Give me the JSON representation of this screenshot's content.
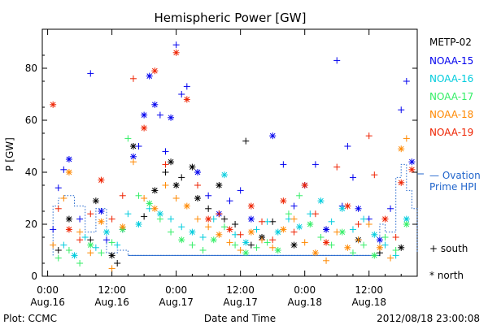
{
  "chart_data": {
    "type": "scatter",
    "title": "Hemispheric Power [GW]",
    "ylabel": "P [GW]",
    "xlabel": "Date and Time",
    "ylim": [
      0,
      95
    ],
    "yticks": [
      0,
      20,
      40,
      60,
      80
    ],
    "xticks": [
      {
        "time": "0:00",
        "date": "Aug.16",
        "hour": 0
      },
      {
        "time": "12:00",
        "date": "Aug.16",
        "hour": 12
      },
      {
        "time": "0:00",
        "date": "Aug.17",
        "hour": 24
      },
      {
        "time": "12:00",
        "date": "Aug.17",
        "hour": 36
      },
      {
        "time": "0:00",
        "date": "Aug.18",
        "hour": 48
      },
      {
        "time": "12:00",
        "date": "Aug.18",
        "hour": 60
      }
    ],
    "xlim_hours": [
      -1,
      69
    ],
    "series": [
      {
        "name": "METP-02",
        "color": "#000000",
        "points": [
          [
            2,
            10,
            "s"
          ],
          [
            4,
            22,
            "n"
          ],
          [
            8,
            14,
            "s"
          ],
          [
            9,
            29,
            "n"
          ],
          [
            12,
            8,
            "n"
          ],
          [
            13,
            5,
            "s"
          ],
          [
            16,
            50,
            "n"
          ],
          [
            18,
            23,
            "s"
          ],
          [
            20,
            33,
            "n"
          ],
          [
            22,
            40,
            "s"
          ],
          [
            23,
            44,
            "n"
          ],
          [
            24,
            35,
            "n"
          ],
          [
            25,
            38,
            "s"
          ],
          [
            27,
            42,
            "n"
          ],
          [
            28,
            30,
            "n"
          ],
          [
            30,
            26,
            "s"
          ],
          [
            32,
            35,
            "n"
          ],
          [
            33,
            22,
            "s"
          ],
          [
            35,
            20,
            "s"
          ],
          [
            37,
            52,
            "s"
          ],
          [
            38,
            12,
            "s"
          ],
          [
            40,
            15,
            "n"
          ],
          [
            42,
            21,
            "s"
          ],
          [
            46,
            12,
            "n"
          ],
          [
            52,
            18,
            "s"
          ],
          [
            58,
            14,
            "n"
          ],
          [
            62,
            9,
            "s"
          ],
          [
            66,
            11,
            "n"
          ]
        ]
      },
      {
        "name": "NOAA-15",
        "color": "#0000ee",
        "points": [
          [
            1,
            18,
            "s"
          ],
          [
            2,
            34,
            "s"
          ],
          [
            3,
            41,
            "s"
          ],
          [
            4,
            45,
            "n"
          ],
          [
            6,
            22,
            "s"
          ],
          [
            8,
            78,
            "s"
          ],
          [
            10,
            25,
            "n"
          ],
          [
            11,
            14,
            "s"
          ],
          [
            14,
            18,
            "s"
          ],
          [
            16,
            46,
            "n"
          ],
          [
            17,
            50,
            "s"
          ],
          [
            18,
            62,
            "n"
          ],
          [
            19,
            77,
            "n"
          ],
          [
            20,
            66,
            "n"
          ],
          [
            21,
            62,
            "s"
          ],
          [
            22,
            48,
            "s"
          ],
          [
            23,
            61,
            "n"
          ],
          [
            24,
            89,
            "s"
          ],
          [
            25,
            70,
            "s"
          ],
          [
            26,
            73,
            "s"
          ],
          [
            28,
            40,
            "n"
          ],
          [
            30,
            31,
            "s"
          ],
          [
            32,
            24,
            "n"
          ],
          [
            34,
            29,
            "s"
          ],
          [
            36,
            33,
            "s"
          ],
          [
            38,
            22,
            "n"
          ],
          [
            40,
            14,
            "s"
          ],
          [
            42,
            54,
            "n"
          ],
          [
            44,
            43,
            "s"
          ],
          [
            46,
            27,
            "s"
          ],
          [
            48,
            35,
            "n"
          ],
          [
            50,
            43,
            "s"
          ],
          [
            52,
            18,
            "n"
          ],
          [
            54,
            83,
            "s"
          ],
          [
            55,
            27,
            "s"
          ],
          [
            56,
            50,
            "s"
          ],
          [
            57,
            38,
            "s"
          ],
          [
            58,
            26,
            "n"
          ],
          [
            60,
            22,
            "s"
          ],
          [
            62,
            14,
            "n"
          ],
          [
            64,
            26,
            "s"
          ],
          [
            66,
            64,
            "s"
          ],
          [
            67,
            75,
            "s"
          ],
          [
            68,
            44,
            "n"
          ]
        ]
      },
      {
        "name": "NOAA-16",
        "color": "#00ccdd",
        "points": [
          [
            3,
            12,
            "s"
          ],
          [
            5,
            8,
            "n"
          ],
          [
            7,
            15,
            "s"
          ],
          [
            9,
            11,
            "s"
          ],
          [
            11,
            17,
            "n"
          ],
          [
            13,
            12,
            "s"
          ],
          [
            15,
            24,
            "s"
          ],
          [
            17,
            20,
            "n"
          ],
          [
            19,
            26,
            "s"
          ],
          [
            21,
            24,
            "n"
          ],
          [
            23,
            22,
            "s"
          ],
          [
            25,
            19,
            "s"
          ],
          [
            27,
            17,
            "n"
          ],
          [
            29,
            15,
            "s"
          ],
          [
            31,
            22,
            "s"
          ],
          [
            33,
            39,
            "n"
          ],
          [
            35,
            16,
            "s"
          ],
          [
            37,
            13,
            "n"
          ],
          [
            39,
            18,
            "s"
          ],
          [
            41,
            21,
            "s"
          ],
          [
            43,
            17,
            "n"
          ],
          [
            45,
            22,
            "s"
          ],
          [
            47,
            19,
            "n"
          ],
          [
            49,
            24,
            "s"
          ],
          [
            51,
            29,
            "n"
          ],
          [
            53,
            21,
            "s"
          ],
          [
            55,
            26,
            "n"
          ],
          [
            57,
            18,
            "s"
          ],
          [
            59,
            22,
            "s"
          ],
          [
            61,
            16,
            "n"
          ],
          [
            63,
            12,
            "s"
          ],
          [
            65,
            8,
            "s"
          ],
          [
            67,
            22,
            "n"
          ]
        ]
      },
      {
        "name": "NOAA-17",
        "color": "#33ee66",
        "points": [
          [
            2,
            7,
            "s"
          ],
          [
            4,
            10,
            "s"
          ],
          [
            6,
            5,
            "s"
          ],
          [
            8,
            12,
            "n"
          ],
          [
            10,
            9,
            "s"
          ],
          [
            12,
            13,
            "s"
          ],
          [
            14,
            18,
            "n"
          ],
          [
            15,
            53,
            "s"
          ],
          [
            17,
            31,
            "s"
          ],
          [
            19,
            28,
            "n"
          ],
          [
            21,
            22,
            "s"
          ],
          [
            23,
            17,
            "s"
          ],
          [
            25,
            14,
            "n"
          ],
          [
            27,
            12,
            "s"
          ],
          [
            29,
            10,
            "s"
          ],
          [
            31,
            14,
            "n"
          ],
          [
            33,
            19,
            "s"
          ],
          [
            35,
            12,
            "s"
          ],
          [
            37,
            9,
            "n"
          ],
          [
            39,
            11,
            "s"
          ],
          [
            41,
            13,
            "s"
          ],
          [
            43,
            10,
            "n"
          ],
          [
            45,
            24,
            "s"
          ],
          [
            47,
            31,
            "s"
          ],
          [
            49,
            20,
            "n"
          ],
          [
            51,
            15,
            "s"
          ],
          [
            53,
            12,
            "s"
          ],
          [
            55,
            17,
            "n"
          ],
          [
            57,
            9,
            "s"
          ],
          [
            59,
            12,
            "s"
          ],
          [
            61,
            8,
            "n"
          ],
          [
            63,
            15,
            "s"
          ],
          [
            65,
            10,
            "s"
          ],
          [
            67,
            20,
            "n"
          ]
        ]
      },
      {
        "name": "NOAA-18",
        "color": "#ff8800",
        "points": [
          [
            1,
            12,
            "s"
          ],
          [
            3,
            30,
            "s"
          ],
          [
            4,
            40,
            "n"
          ],
          [
            6,
            17,
            "s"
          ],
          [
            8,
            9,
            "s"
          ],
          [
            10,
            21,
            "n"
          ],
          [
            12,
            3,
            "s"
          ],
          [
            14,
            19,
            "n"
          ],
          [
            16,
            44,
            "s"
          ],
          [
            18,
            30,
            "s"
          ],
          [
            20,
            26,
            "n"
          ],
          [
            22,
            35,
            "s"
          ],
          [
            24,
            30,
            "s"
          ],
          [
            26,
            27,
            "n"
          ],
          [
            28,
            22,
            "s"
          ],
          [
            30,
            19,
            "s"
          ],
          [
            32,
            16,
            "n"
          ],
          [
            34,
            13,
            "s"
          ],
          [
            36,
            10,
            "s"
          ],
          [
            38,
            17,
            "n"
          ],
          [
            40,
            14,
            "s"
          ],
          [
            42,
            11,
            "s"
          ],
          [
            44,
            18,
            "n"
          ],
          [
            46,
            22,
            "s"
          ],
          [
            48,
            13,
            "s"
          ],
          [
            50,
            9,
            "n"
          ],
          [
            52,
            6,
            "s"
          ],
          [
            54,
            17,
            "s"
          ],
          [
            56,
            11,
            "n"
          ],
          [
            58,
            14,
            "s"
          ],
          [
            60,
            20,
            "s"
          ],
          [
            62,
            11,
            "n"
          ],
          [
            64,
            7,
            "s"
          ],
          [
            66,
            49,
            "n"
          ],
          [
            67,
            53,
            "s"
          ]
        ]
      },
      {
        "name": "NOAA-19",
        "color": "#ee2200",
        "points": [
          [
            1,
            66,
            "n"
          ],
          [
            2,
            26,
            "s"
          ],
          [
            4,
            18,
            "n"
          ],
          [
            6,
            14,
            "s"
          ],
          [
            8,
            24,
            "s"
          ],
          [
            10,
            37,
            "n"
          ],
          [
            12,
            22,
            "s"
          ],
          [
            14,
            31,
            "s"
          ],
          [
            16,
            76,
            "s"
          ],
          [
            18,
            57,
            "n"
          ],
          [
            20,
            79,
            "n"
          ],
          [
            22,
            43,
            "s"
          ],
          [
            24,
            86,
            "n"
          ],
          [
            26,
            68,
            "n"
          ],
          [
            28,
            35,
            "s"
          ],
          [
            30,
            22,
            "n"
          ],
          [
            32,
            24,
            "s"
          ],
          [
            34,
            18,
            "n"
          ],
          [
            36,
            16,
            "s"
          ],
          [
            38,
            27,
            "n"
          ],
          [
            40,
            21,
            "s"
          ],
          [
            42,
            14,
            "s"
          ],
          [
            44,
            29,
            "n"
          ],
          [
            46,
            17,
            "s"
          ],
          [
            48,
            35,
            "n"
          ],
          [
            50,
            24,
            "s"
          ],
          [
            52,
            13,
            "n"
          ],
          [
            54,
            42,
            "s"
          ],
          [
            56,
            27,
            "n"
          ],
          [
            58,
            20,
            "s"
          ],
          [
            60,
            54,
            "s"
          ],
          [
            61,
            39,
            "s"
          ],
          [
            63,
            22,
            "n"
          ],
          [
            65,
            15,
            "s"
          ],
          [
            66,
            36,
            "n"
          ],
          [
            68,
            41,
            "n"
          ]
        ]
      }
    ],
    "ovation_prime_hpi": [
      [
        1,
        8
      ],
      [
        1,
        27
      ],
      [
        2,
        27
      ],
      [
        2,
        30
      ],
      [
        3,
        30
      ],
      [
        3,
        31
      ],
      [
        5,
        31
      ],
      [
        5,
        27
      ],
      [
        7,
        27
      ],
      [
        7,
        17
      ],
      [
        9,
        17
      ],
      [
        9,
        26
      ],
      [
        11,
        26
      ],
      [
        11,
        9
      ],
      [
        13,
        9
      ],
      [
        13,
        10
      ],
      [
        15,
        10
      ],
      [
        15,
        8
      ],
      [
        62,
        8
      ],
      [
        62,
        20
      ],
      [
        63,
        20
      ],
      [
        63,
        17
      ],
      [
        65,
        17
      ],
      [
        65,
        38
      ],
      [
        66,
        38
      ],
      [
        66,
        43
      ],
      [
        67,
        43
      ],
      [
        67,
        33
      ],
      [
        68,
        33
      ],
      [
        68,
        26
      ],
      [
        69,
        26
      ],
      [
        69,
        9
      ]
    ],
    "legend": {
      "entries": [
        "METP-02",
        "NOAA-15",
        "NOAA-16",
        "NOAA-17",
        "NOAA-18",
        "NOAA-19"
      ],
      "ovation_label_1": "— Ovation",
      "ovation_label_2": "Prime HPI",
      "ovation_color": "#2266cc",
      "south_label": "+ south",
      "north_label": "* north"
    },
    "footer": {
      "plot_credit": "Plot: CCMC",
      "timestamp": "2012/08/18 23:00:08"
    }
  }
}
